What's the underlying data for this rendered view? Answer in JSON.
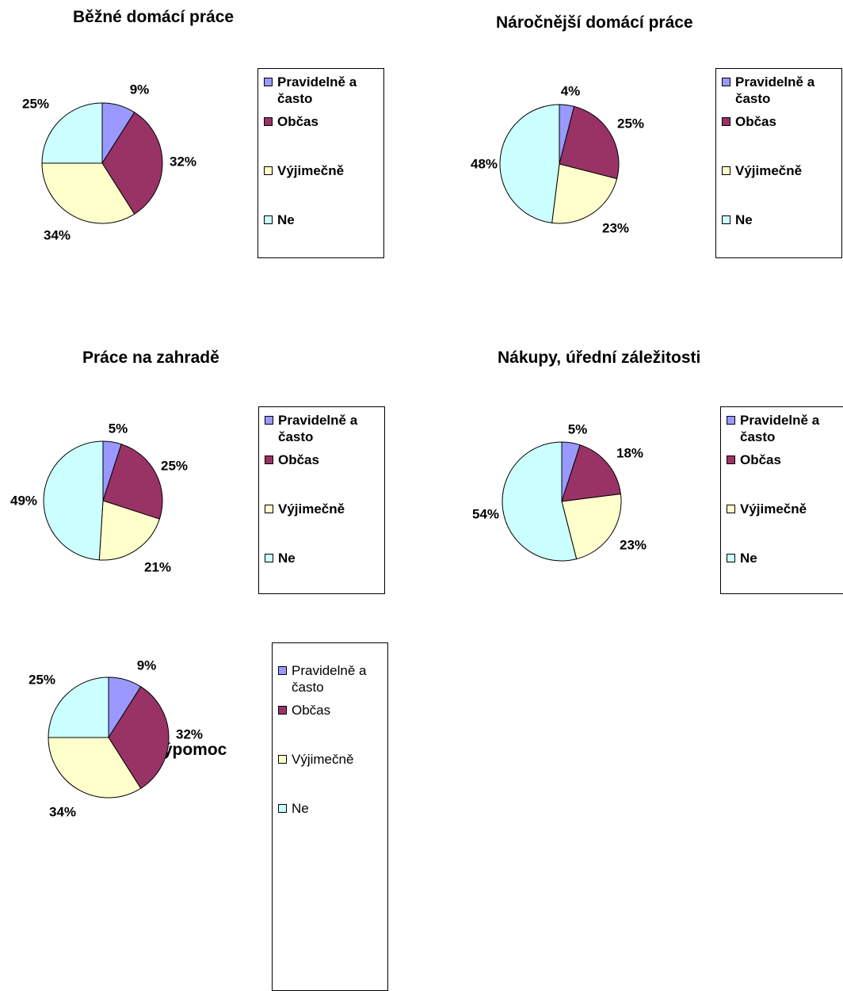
{
  "legend_labels": [
    "Pravidelně a\nčasto",
    "Občas",
    "Výjimečně",
    "Ne"
  ],
  "colors": {
    "Pravidelně a často": "#9999ff",
    "Občas": "#993366",
    "Výjimečně": "#ffffcc",
    "Ne": "#ccffff"
  },
  "chart_data": [
    {
      "type": "pie",
      "title": "Běžné domácí práce",
      "categories": [
        "Pravidelně a často",
        "Občas",
        "Výjimečně",
        "Ne"
      ],
      "values": [
        9,
        32,
        34,
        25
      ],
      "labels": [
        "9%",
        "32%",
        "34%",
        "25%"
      ],
      "legend_position": "right"
    },
    {
      "type": "pie",
      "title": "Náročnější domácí práce",
      "categories": [
        "Pravidelně a často",
        "Občas",
        "Výjimečně",
        "Ne"
      ],
      "values": [
        4,
        25,
        23,
        48
      ],
      "labels": [
        "4%",
        "25%",
        "23%",
        "48%"
      ],
      "legend_position": "right"
    },
    {
      "type": "pie",
      "title": "Práce na zahradě",
      "categories": [
        "Pravidelně a často",
        "Občas",
        "Výjimečně",
        "Ne"
      ],
      "values": [
        5,
        25,
        21,
        49
      ],
      "labels": [
        "5%",
        "25%",
        "21%",
        "49%"
      ],
      "legend_position": "right"
    },
    {
      "type": "pie",
      "title": "Nákupy, úřední záležitosti",
      "categories": [
        "Pravidelně a často",
        "Občas",
        "Výjimečně",
        "Ne"
      ],
      "values": [
        5,
        18,
        23,
        54
      ],
      "labels": [
        "5%",
        "18%",
        "23%",
        "54%"
      ],
      "legend_position": "right"
    },
    {
      "type": "pie",
      "title": "Finanční výpomoc",
      "categories": [
        "Pravidelně a často",
        "Občas",
        "Výjimečně",
        "Ne"
      ],
      "values": [
        9,
        32,
        34,
        25
      ],
      "labels": [
        "9%",
        "32%",
        "34%",
        "25%"
      ],
      "legend_position": "right"
    }
  ]
}
